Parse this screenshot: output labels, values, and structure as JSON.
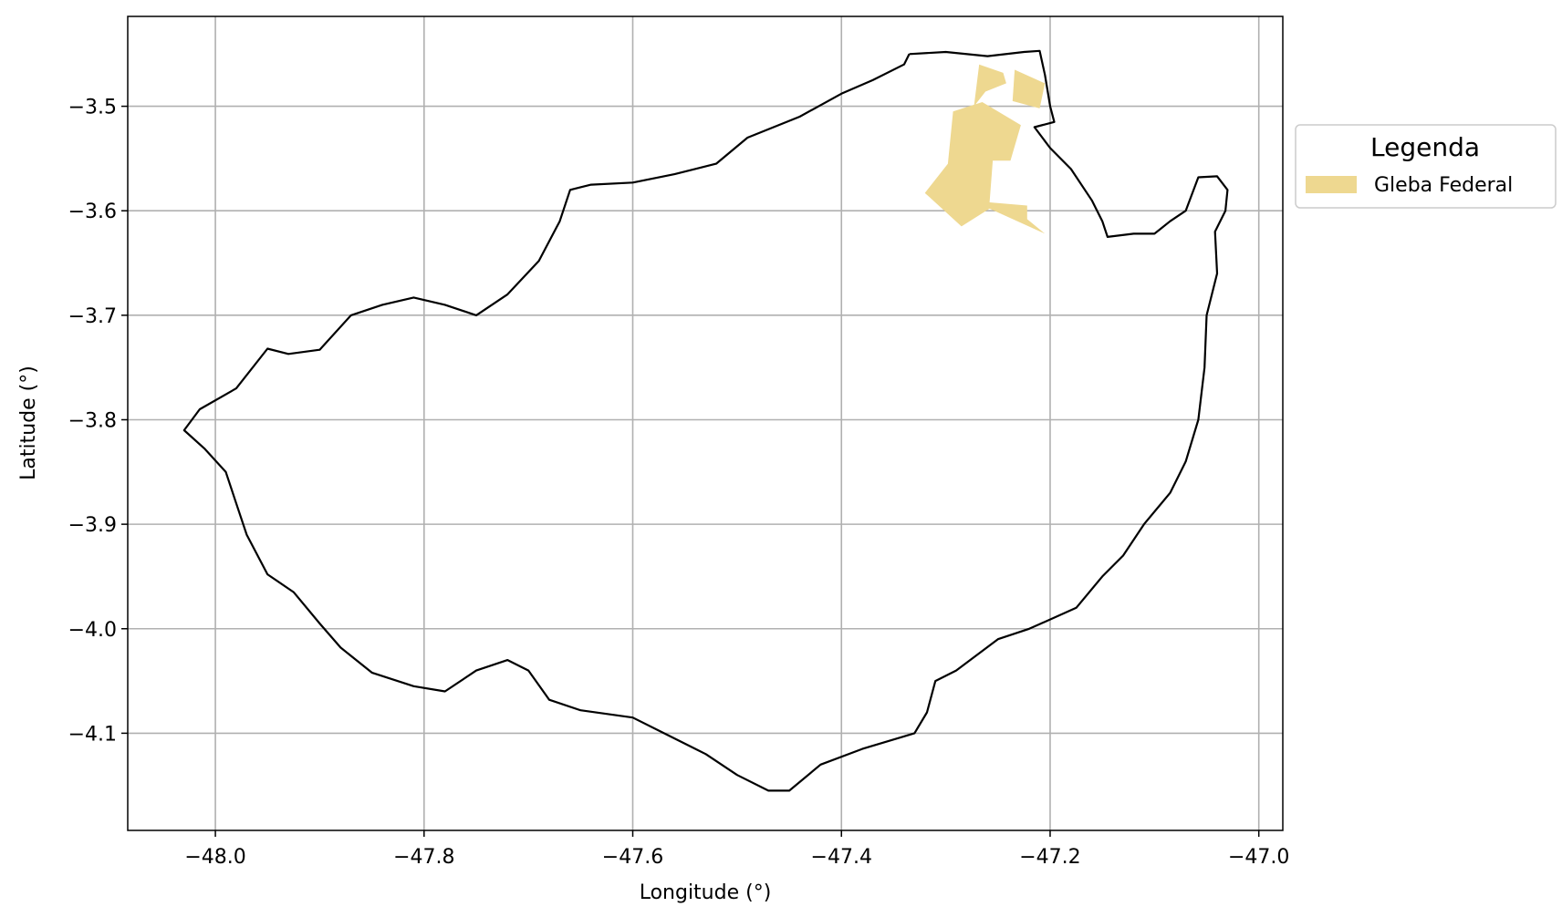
{
  "chart_data": {
    "type": "map",
    "xlabel": "Longitude (°)",
    "ylabel": "Latitude (°)",
    "xlim": [
      -48.084,
      -46.977
    ],
    "ylim": [
      -4.193,
      -3.414
    ],
    "x_ticks": [
      -48.0,
      -47.8,
      -47.6,
      -47.4,
      -47.2,
      -47.0
    ],
    "x_tick_labels": [
      "−48.0",
      "−47.8",
      "−47.6",
      "−47.4",
      "−47.2",
      "−47.0"
    ],
    "y_ticks": [
      -3.5,
      -3.6,
      -3.7,
      -3.8,
      -3.9,
      -4.0,
      -4.1
    ],
    "y_tick_labels": [
      "−3.5",
      "−3.6",
      "−3.7",
      "−3.8",
      "−3.9",
      "−4.0",
      "−4.1"
    ],
    "grid": true,
    "legend": {
      "title": "Legenda",
      "placement": "outside-right",
      "entries": [
        {
          "label": "Gleba Federal",
          "color": "#eed890"
        }
      ]
    },
    "layers": [
      {
        "name": "boundary",
        "style": "outline",
        "color": "#000000",
        "coordinates": [
          [
            -47.335,
            -3.45
          ],
          [
            -47.3,
            -3.448
          ],
          [
            -47.26,
            -3.452
          ],
          [
            -47.225,
            -3.448
          ],
          [
            -47.21,
            -3.447
          ],
          [
            -47.205,
            -3.47
          ],
          [
            -47.2,
            -3.5
          ],
          [
            -47.196,
            -3.515
          ],
          [
            -47.215,
            -3.52
          ],
          [
            -47.2,
            -3.54
          ],
          [
            -47.18,
            -3.56
          ],
          [
            -47.16,
            -3.59
          ],
          [
            -47.15,
            -3.61
          ],
          [
            -47.145,
            -3.625
          ],
          [
            -47.12,
            -3.622
          ],
          [
            -47.1,
            -3.622
          ],
          [
            -47.085,
            -3.61
          ],
          [
            -47.07,
            -3.6
          ],
          [
            -47.058,
            -3.568
          ],
          [
            -47.04,
            -3.567
          ],
          [
            -47.03,
            -3.58
          ],
          [
            -47.032,
            -3.6
          ],
          [
            -47.042,
            -3.62
          ],
          [
            -47.04,
            -3.66
          ],
          [
            -47.05,
            -3.7
          ],
          [
            -47.052,
            -3.75
          ],
          [
            -47.058,
            -3.8
          ],
          [
            -47.07,
            -3.84
          ],
          [
            -47.085,
            -3.87
          ],
          [
            -47.11,
            -3.9
          ],
          [
            -47.13,
            -3.93
          ],
          [
            -47.15,
            -3.95
          ],
          [
            -47.175,
            -3.98
          ],
          [
            -47.22,
            -4.0
          ],
          [
            -47.25,
            -4.01
          ],
          [
            -47.29,
            -4.04
          ],
          [
            -47.31,
            -4.05
          ],
          [
            -47.318,
            -4.08
          ],
          [
            -47.33,
            -4.1
          ],
          [
            -47.38,
            -4.115
          ],
          [
            -47.42,
            -4.13
          ],
          [
            -47.45,
            -4.155
          ],
          [
            -47.47,
            -4.155
          ],
          [
            -47.5,
            -4.14
          ],
          [
            -47.53,
            -4.12
          ],
          [
            -47.57,
            -4.1
          ],
          [
            -47.6,
            -4.085
          ],
          [
            -47.65,
            -4.078
          ],
          [
            -47.68,
            -4.068
          ],
          [
            -47.7,
            -4.04
          ],
          [
            -47.72,
            -4.03
          ],
          [
            -47.75,
            -4.04
          ],
          [
            -47.78,
            -4.06
          ],
          [
            -47.81,
            -4.055
          ],
          [
            -47.85,
            -4.042
          ],
          [
            -47.88,
            -4.018
          ],
          [
            -47.9,
            -3.995
          ],
          [
            -47.925,
            -3.965
          ],
          [
            -47.95,
            -3.948
          ],
          [
            -47.97,
            -3.91
          ],
          [
            -47.98,
            -3.88
          ],
          [
            -47.99,
            -3.85
          ],
          [
            -48.01,
            -3.828
          ],
          [
            -48.03,
            -3.81
          ],
          [
            -48.015,
            -3.79
          ],
          [
            -47.98,
            -3.77
          ],
          [
            -47.95,
            -3.732
          ],
          [
            -47.93,
            -3.737
          ],
          [
            -47.9,
            -3.733
          ],
          [
            -47.87,
            -3.7
          ],
          [
            -47.84,
            -3.69
          ],
          [
            -47.81,
            -3.683
          ],
          [
            -47.78,
            -3.69
          ],
          [
            -47.75,
            -3.7
          ],
          [
            -47.72,
            -3.68
          ],
          [
            -47.69,
            -3.648
          ],
          [
            -47.67,
            -3.61
          ],
          [
            -47.66,
            -3.58
          ],
          [
            -47.64,
            -3.575
          ],
          [
            -47.6,
            -3.573
          ],
          [
            -47.56,
            -3.565
          ],
          [
            -47.52,
            -3.555
          ],
          [
            -47.49,
            -3.53
          ],
          [
            -47.44,
            -3.51
          ],
          [
            -47.4,
            -3.488
          ],
          [
            -47.37,
            -3.475
          ],
          [
            -47.34,
            -3.46
          ],
          [
            -47.335,
            -3.45
          ]
        ]
      },
      {
        "name": "Gleba Federal",
        "style": "fill",
        "color": "#eed890",
        "polygons": [
          [
            [
              -47.268,
              -3.46
            ],
            [
              -47.245,
              -3.468
            ],
            [
              -47.242,
              -3.478
            ],
            [
              -47.262,
              -3.486
            ],
            [
              -47.273,
              -3.5
            ]
          ],
          [
            [
              -47.234,
              -3.465
            ],
            [
              -47.205,
              -3.478
            ],
            [
              -47.21,
              -3.502
            ],
            [
              -47.236,
              -3.495
            ]
          ],
          [
            [
              -47.293,
              -3.505
            ],
            [
              -47.265,
              -3.496
            ],
            [
              -47.228,
              -3.518
            ],
            [
              -47.238,
              -3.552
            ],
            [
              -47.255,
              -3.552
            ],
            [
              -47.258,
              -3.592
            ],
            [
              -47.222,
              -3.595
            ],
            [
              -47.222,
              -3.608
            ],
            [
              -47.205,
              -3.622
            ],
            [
              -47.258,
              -3.598
            ],
            [
              -47.285,
              -3.615
            ],
            [
              -47.32,
              -3.583
            ],
            [
              -47.298,
              -3.555
            ]
          ]
        ]
      }
    ]
  }
}
